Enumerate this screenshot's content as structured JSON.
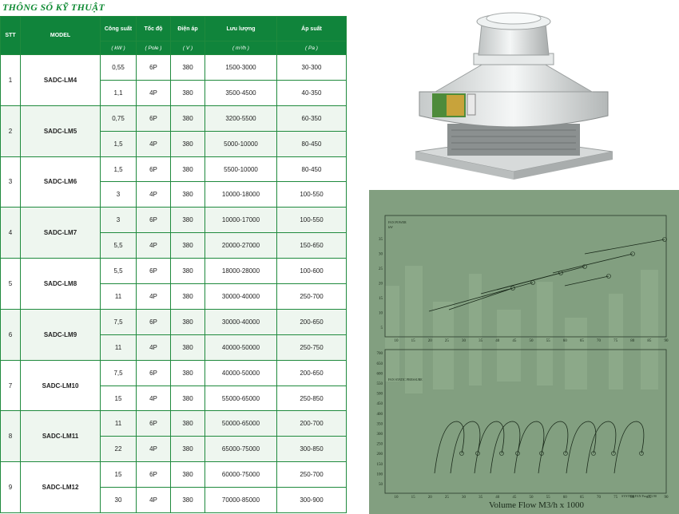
{
  "title": "THÔNG SỐ KỸ THUẬT",
  "headers": {
    "stt": "STT",
    "model": "MODEL",
    "power": "Công suất",
    "speed": "Tốc độ",
    "voltage": "Điện áp",
    "flow": "Lưu lượng",
    "pressure": "Áp suất"
  },
  "units": {
    "power": "( kW )",
    "speed": "( Pole )",
    "voltage": "( V )",
    "flow": "( m³/h )",
    "pressure": "( Pa )"
  },
  "rows": [
    {
      "stt": "1",
      "model": "SADC-LM4",
      "items": [
        {
          "power": "0,55",
          "speed": "6P",
          "voltage": "380",
          "flow": "1500-3000",
          "pressure": "30-300"
        },
        {
          "power": "1,1",
          "speed": "4P",
          "voltage": "380",
          "flow": "3500-4500",
          "pressure": "40-350"
        }
      ]
    },
    {
      "stt": "2",
      "model": "SADC-LM5",
      "items": [
        {
          "power": "0,75",
          "speed": "6P",
          "voltage": "380",
          "flow": "3200-5500",
          "pressure": "60-350"
        },
        {
          "power": "1,5",
          "speed": "4P",
          "voltage": "380",
          "flow": "5000-10000",
          "pressure": "80-450"
        }
      ]
    },
    {
      "stt": "3",
      "model": "SADC-LM6",
      "items": [
        {
          "power": "1,5",
          "speed": "6P",
          "voltage": "380",
          "flow": "5500-10000",
          "pressure": "80-450"
        },
        {
          "power": "3",
          "speed": "4P",
          "voltage": "380",
          "flow": "10000-18000",
          "pressure": "100-550"
        }
      ]
    },
    {
      "stt": "4",
      "model": "SADC-LM7",
      "items": [
        {
          "power": "3",
          "speed": "6P",
          "voltage": "380",
          "flow": "10000-17000",
          "pressure": "100-550"
        },
        {
          "power": "5,5",
          "speed": "4P",
          "voltage": "380",
          "flow": "20000-27000",
          "pressure": "150-650"
        }
      ]
    },
    {
      "stt": "5",
      "model": "SADC-LM8",
      "items": [
        {
          "power": "5,5",
          "speed": "6P",
          "voltage": "380",
          "flow": "18000-28000",
          "pressure": "100-600"
        },
        {
          "power": "11",
          "speed": "4P",
          "voltage": "380",
          "flow": "30000-40000",
          "pressure": "250-700"
        }
      ]
    },
    {
      "stt": "6",
      "model": "SADC-LM9",
      "items": [
        {
          "power": "7,5",
          "speed": "6P",
          "voltage": "380",
          "flow": "30000-40000",
          "pressure": "200-650"
        },
        {
          "power": "11",
          "speed": "4P",
          "voltage": "380",
          "flow": "40000-50000",
          "pressure": "250-750"
        }
      ]
    },
    {
      "stt": "7",
      "model": "SADC-LM10",
      "items": [
        {
          "power": "7,5",
          "speed": "6P",
          "voltage": "380",
          "flow": "40000-50000",
          "pressure": "200-650"
        },
        {
          "power": "15",
          "speed": "4P",
          "voltage": "380",
          "flow": "55000-65000",
          "pressure": "250-850"
        }
      ]
    },
    {
      "stt": "8",
      "model": "SADC-LM11",
      "items": [
        {
          "power": "11",
          "speed": "6P",
          "voltage": "380",
          "flow": "50000-65000",
          "pressure": "200-700"
        },
        {
          "power": "22",
          "speed": "4P",
          "voltage": "380",
          "flow": "65000-75000",
          "pressure": "300-850"
        }
      ]
    },
    {
      "stt": "9",
      "model": "SADC-LM12",
      "items": [
        {
          "power": "15",
          "speed": "6P",
          "voltage": "380",
          "flow": "60000-75000",
          "pressure": "250-700"
        },
        {
          "power": "30",
          "speed": "4P",
          "voltage": "380",
          "flow": "70000-85000",
          "pressure": "300-900"
        }
      ]
    }
  ],
  "graph": {
    "power_label_1": "FAN POWER",
    "power_label_2": "kW",
    "pressure_label": "FAN STATIC PRESSURE",
    "x_ticks": [
      "10",
      "15",
      "20",
      "25",
      "30",
      "35",
      "40",
      "45",
      "50",
      "55",
      "60",
      "65",
      "70",
      "75",
      "80",
      "85",
      "90"
    ],
    "power_ticks": [
      "5",
      "10",
      "15",
      "20",
      "25",
      "30",
      "35"
    ],
    "pressure_ticks": [
      "50",
      "100",
      "150",
      "200",
      "250",
      "300",
      "350",
      "400",
      "450",
      "500",
      "550",
      "600",
      "650",
      "700"
    ],
    "x_label": "Volume Flow M3/h x 1000",
    "footer": "SYSTEM FAN Prog V3.90",
    "colors": {
      "bg": "#829f80",
      "line": "#1a2a1a"
    }
  }
}
